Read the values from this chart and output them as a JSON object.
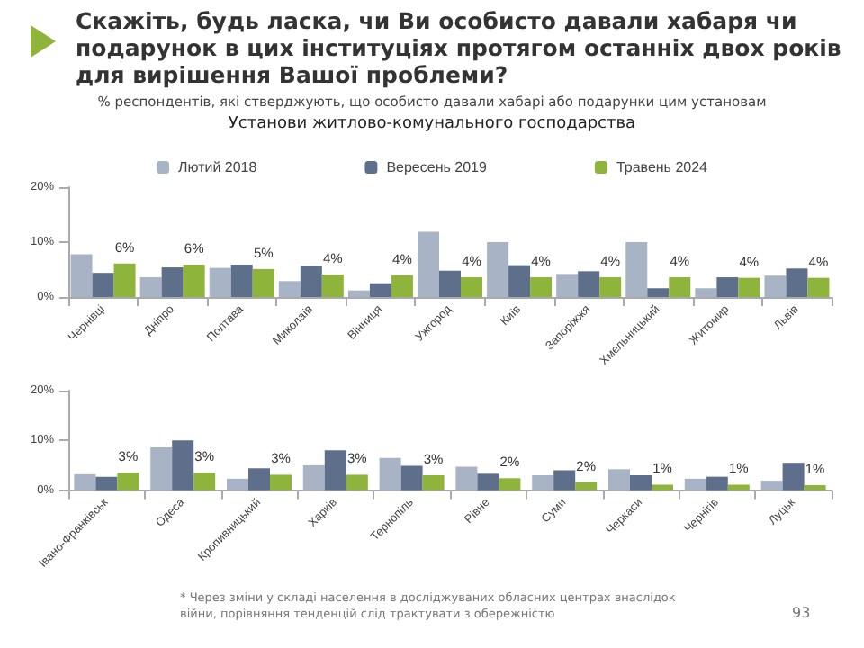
{
  "chart_data": [
    {
      "type": "bar",
      "title": "Скажіть, будь ласка, чи Ви особисто давали хабаря чи подарунок в цих інституціях протягом останніх двох років для вирішення Вашої проблеми?",
      "subtitle": "% респондентів, які стверджують, що особисто давали хабарі або подарунки цим установам",
      "annotations": [
        "Установи житлово-комунального господарства"
      ],
      "categories": [
        "Чернівці",
        "Дніпро",
        "Полтава",
        "Миколаїв",
        "Вінниця",
        "Ужгород",
        "Київ",
        "Запоріжжя",
        "Хмельницький",
        "Житомир",
        "Львів"
      ],
      "series": [
        {
          "name": "Лютий 2018",
          "color": "#a8b4c6",
          "values": [
            7.8,
            3.6,
            5.3,
            2.9,
            1.2,
            11.9,
            10.0,
            4.2,
            10.0,
            1.6,
            3.9
          ]
        },
        {
          "name": "Вересень 2019",
          "color": "#5d6f8b",
          "values": [
            4.4,
            5.4,
            5.9,
            5.6,
            2.5,
            4.8,
            5.8,
            4.7,
            1.6,
            3.6,
            5.2
          ]
        },
        {
          "name": "Травень 2024",
          "color": "#8fb43c",
          "values": [
            6.1,
            5.9,
            5.1,
            4.1,
            4.0,
            3.6,
            3.6,
            3.6,
            3.6,
            3.5,
            3.5
          ],
          "value_labels": [
            "6%",
            "6%",
            "5%",
            "4%",
            "4%",
            "4%",
            "4%",
            "4%",
            "4%",
            "4%",
            "4%"
          ]
        }
      ],
      "ylim": [
        0,
        20
      ],
      "yticks": [
        {
          "value": 0,
          "label": "0%"
        },
        {
          "value": 10,
          "label": "10%"
        },
        {
          "value": 20,
          "label": "20%"
        }
      ],
      "grid": false,
      "legend": "top"
    },
    {
      "type": "bar",
      "annotations": [
        "* Через зміни у складі населення в досліджуваних обласних центрах внаслідок війни, порівняння тенденцій слід трактувати з обережністю",
        "93"
      ],
      "categories": [
        "Івано-Франківськ",
        "Одеса",
        "Кропивницький",
        "Харків",
        "Тернопіль",
        "Рівне",
        "Суми",
        "Черкаси",
        "Чернігів",
        "Луцьк"
      ],
      "series": [
        {
          "color": "#a8b4c6",
          "values": [
            3.2,
            8.6,
            2.3,
            5.0,
            6.5,
            4.7,
            3.0,
            4.2,
            2.3,
            1.9
          ]
        },
        {
          "color": "#5d6f8b",
          "values": [
            2.7,
            10.0,
            4.4,
            8.0,
            4.9,
            3.3,
            4.0,
            3.0,
            2.7,
            5.5
          ]
        },
        {
          "color": "#8fb43c",
          "values": [
            3.5,
            3.5,
            3.1,
            3.1,
            3.0,
            2.4,
            1.6,
            1.1,
            1.1,
            1.0
          ],
          "value_labels": [
            "3%",
            "3%",
            "3%",
            "3%",
            "3%",
            "2%",
            "2%",
            "1%",
            "1%",
            "1%"
          ]
        }
      ],
      "ylim": [
        0,
        20
      ],
      "yticks": [
        {
          "value": 0,
          "label": "0%"
        },
        {
          "value": 10,
          "label": "10%"
        },
        {
          "value": 20,
          "label": "20%"
        }
      ],
      "grid": false,
      "legend": false
    }
  ]
}
